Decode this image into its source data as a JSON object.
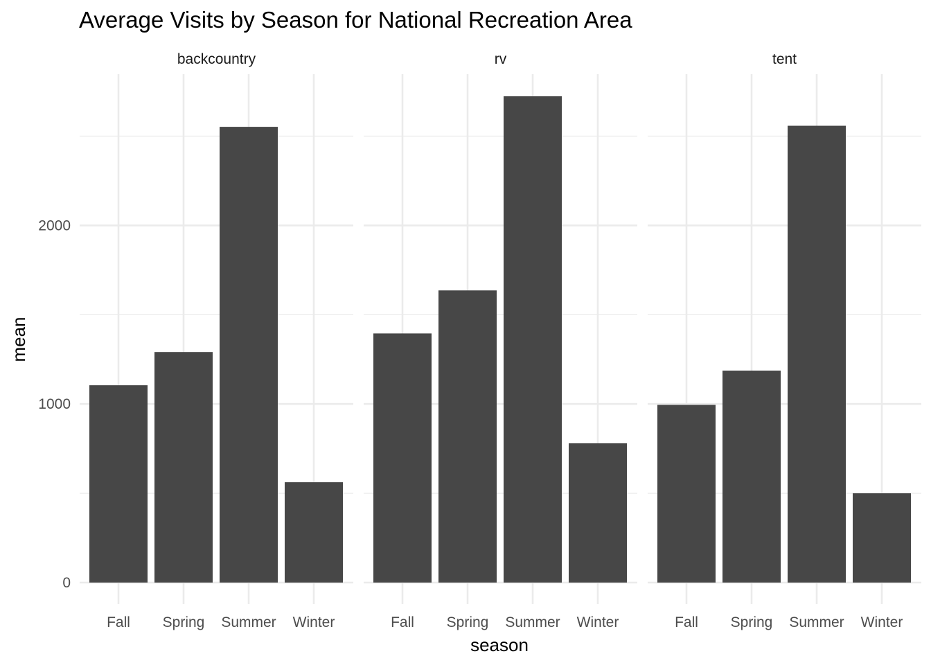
{
  "chart_data": {
    "type": "bar",
    "title": "Average Visits by Season for National Recreation Area",
    "xlabel": "season",
    "ylabel": "mean",
    "categories": [
      "Fall",
      "Spring",
      "Summer",
      "Winter"
    ],
    "facets": [
      {
        "label": "backcountry",
        "values": [
          1105,
          1291,
          2552,
          562
        ]
      },
      {
        "label": "rv",
        "values": [
          1395,
          1636,
          2723,
          780
        ]
      },
      {
        "label": "tent",
        "values": [
          995,
          1187,
          2558,
          500
        ]
      }
    ],
    "ylim": [
      -140,
      2860
    ],
    "yticks": [
      0,
      1000,
      2000
    ],
    "grid": true,
    "legend": "none",
    "colors": {
      "bar": "#474747",
      "grid": "#ebebeb"
    }
  }
}
